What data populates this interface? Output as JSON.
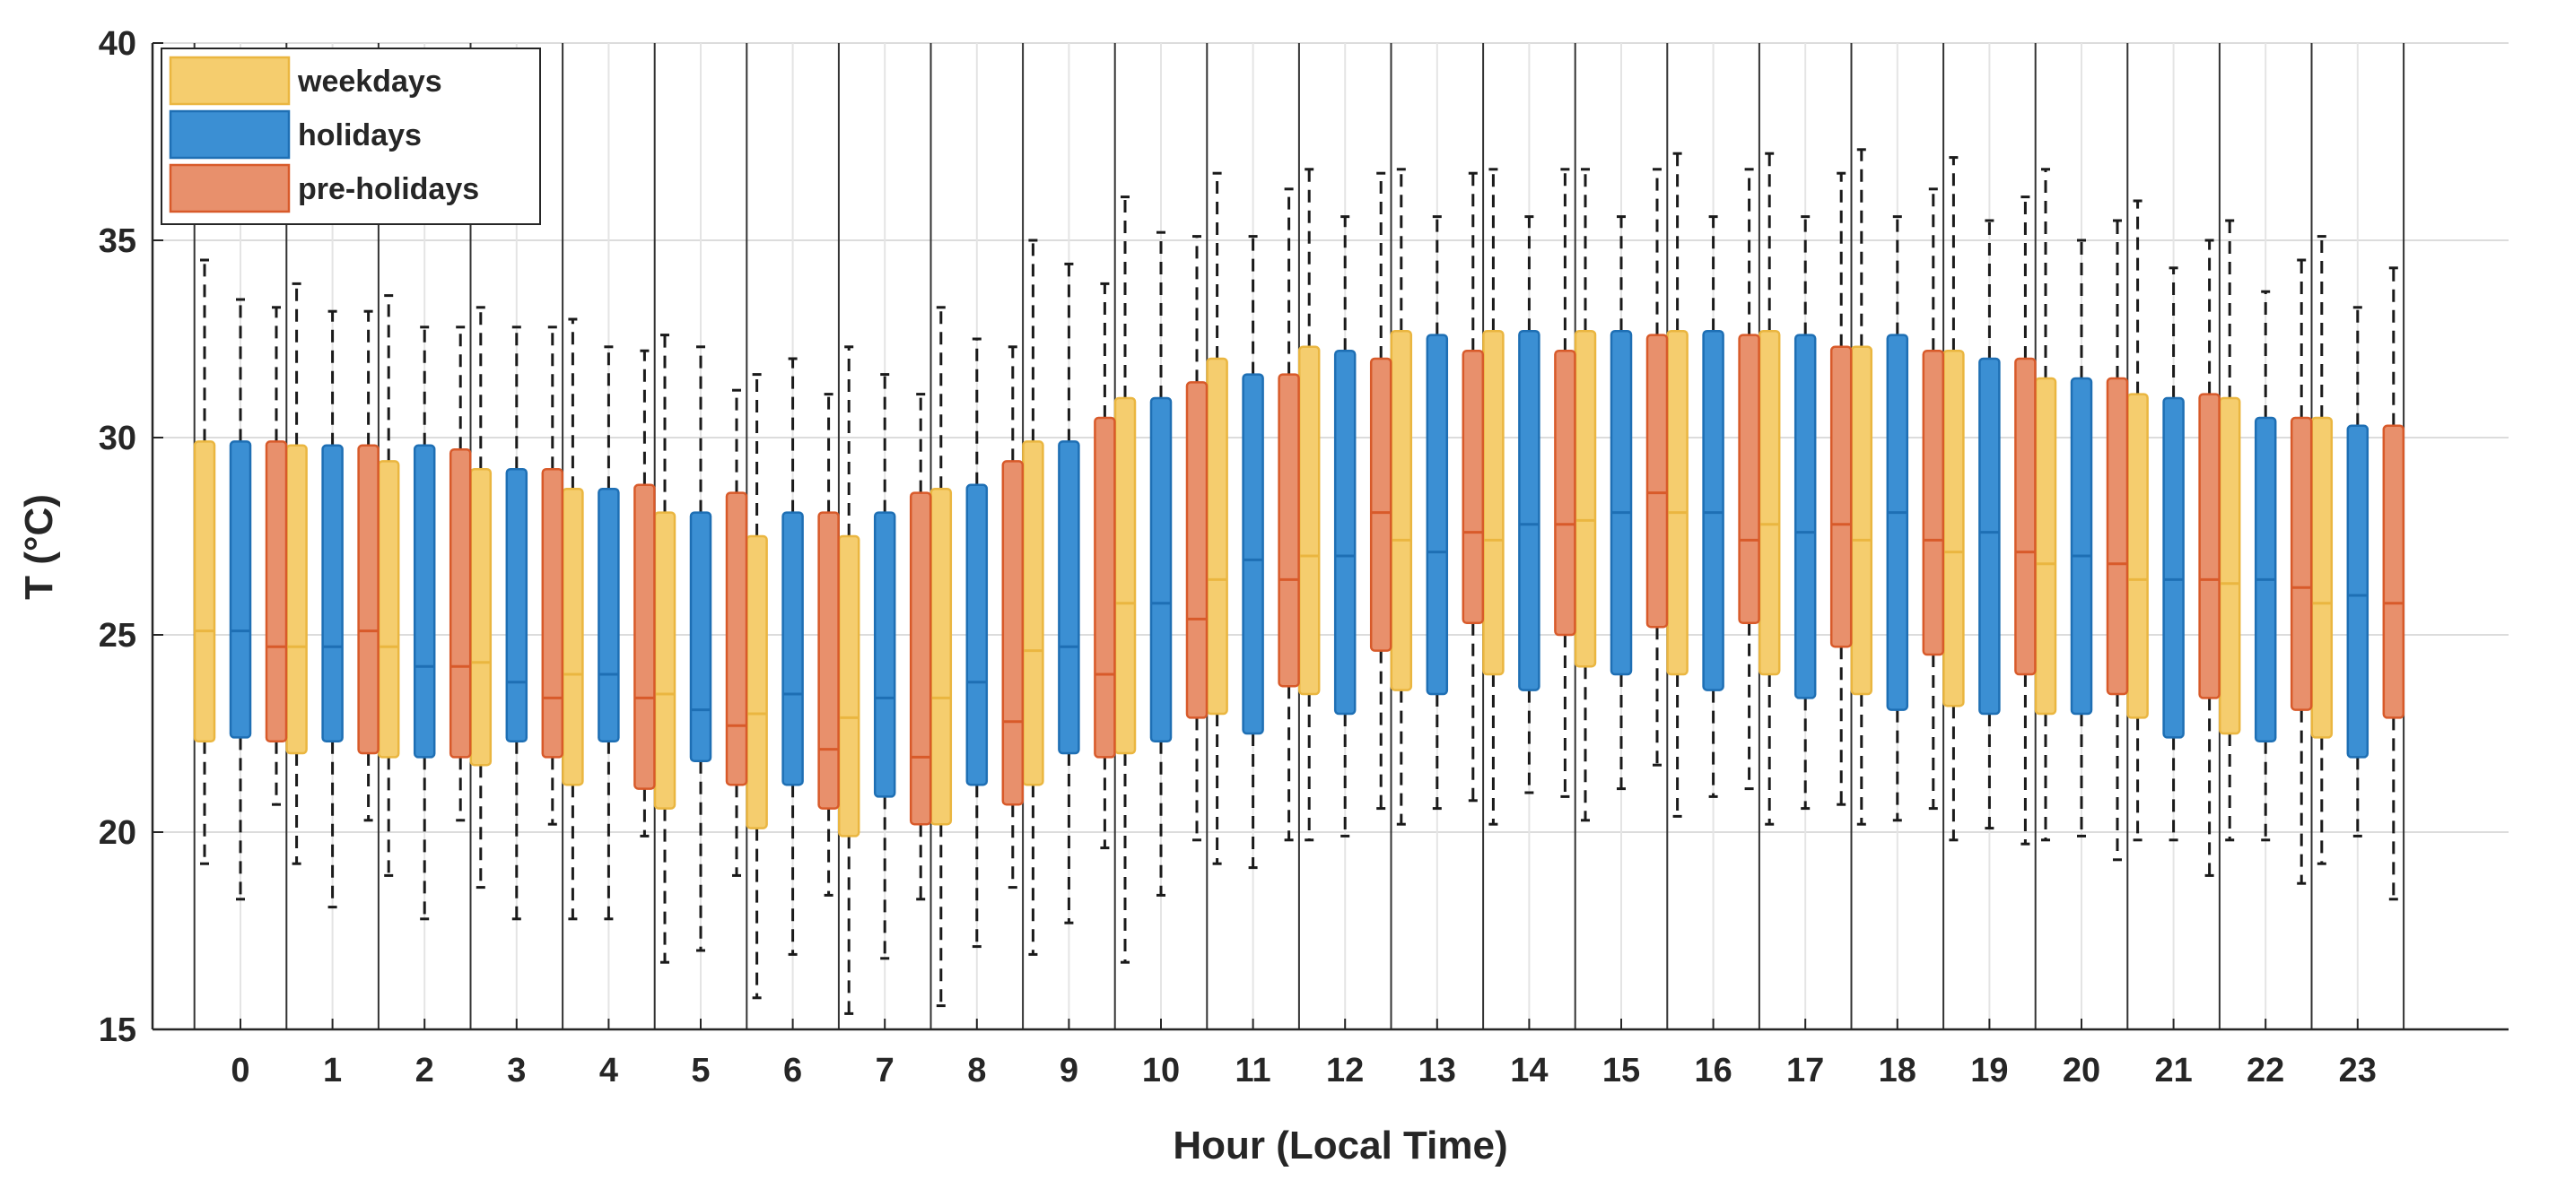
{
  "chart_data": {
    "type": "box",
    "title": "",
    "xlabel": "Hour (Local Time)",
    "ylabel": "T (°C)",
    "ylim": [
      15,
      40
    ],
    "yticks": [
      "15",
      "20",
      "25",
      "30",
      "35",
      "40"
    ],
    "categories": [
      "0",
      "1",
      "2",
      "3",
      "4",
      "5",
      "6",
      "7",
      "8",
      "9",
      "10",
      "11",
      "12",
      "13",
      "14",
      "15",
      "16",
      "17",
      "18",
      "19",
      "20",
      "21",
      "22",
      "23"
    ],
    "grid": true,
    "legend_position": "top-left",
    "series": [
      {
        "name": "weekdays",
        "color": "#f5cd6e",
        "edge": "#eab640",
        "lower_whisker": [
          19.2,
          19.2,
          18.9,
          18.6,
          17.8,
          16.7,
          15.8,
          15.4,
          15.6,
          16.9,
          16.7,
          19.2,
          19.8,
          20.2,
          20.2,
          20.3,
          20.4,
          20.2,
          20.2,
          19.8,
          19.8,
          19.8,
          19.8,
          19.2
        ],
        "q1": [
          22.3,
          22.0,
          21.9,
          21.7,
          21.2,
          20.6,
          20.1,
          19.9,
          20.2,
          21.2,
          22.0,
          23.0,
          23.5,
          23.6,
          24.0,
          24.2,
          24.0,
          24.0,
          23.5,
          23.2,
          23.0,
          22.9,
          22.5,
          22.4
        ],
        "median": [
          25.1,
          24.7,
          24.7,
          24.3,
          24.0,
          23.5,
          23.0,
          22.9,
          23.4,
          24.6,
          25.8,
          26.4,
          27.0,
          27.4,
          27.4,
          27.9,
          28.1,
          27.8,
          27.4,
          27.1,
          26.8,
          26.4,
          26.3,
          25.8
        ],
        "q3": [
          29.9,
          29.8,
          29.4,
          29.2,
          28.7,
          28.1,
          27.5,
          27.5,
          28.7,
          29.9,
          31.0,
          32.0,
          32.3,
          32.7,
          32.7,
          32.7,
          32.7,
          32.7,
          32.3,
          32.2,
          31.5,
          31.1,
          31.0,
          30.5
        ],
        "upper_whisker": [
          34.5,
          33.9,
          33.6,
          33.3,
          33.0,
          32.6,
          31.6,
          32.3,
          33.3,
          35.0,
          36.1,
          36.7,
          36.8,
          36.8,
          36.8,
          36.8,
          37.2,
          37.2,
          37.3,
          37.1,
          36.8,
          36.0,
          35.5,
          35.1
        ]
      },
      {
        "name": "holidays",
        "color": "#3b8fd3",
        "edge": "#1e6fb4",
        "lower_whisker": [
          18.3,
          18.1,
          17.8,
          17.8,
          17.8,
          17.0,
          16.9,
          16.8,
          17.1,
          17.7,
          18.4,
          19.1,
          19.9,
          20.6,
          21.0,
          21.1,
          20.9,
          20.6,
          20.3,
          20.1,
          19.9,
          19.8,
          19.8,
          19.9
        ],
        "q1": [
          22.4,
          22.3,
          21.9,
          22.3,
          22.3,
          21.8,
          21.2,
          20.9,
          21.2,
          22.0,
          22.3,
          22.5,
          23.0,
          23.5,
          23.6,
          24.0,
          23.6,
          23.4,
          23.1,
          23.0,
          23.0,
          22.4,
          22.3,
          21.9
        ],
        "median": [
          25.1,
          24.7,
          24.2,
          23.8,
          24.0,
          23.1,
          23.5,
          23.4,
          23.8,
          24.7,
          25.8,
          26.9,
          27.0,
          27.1,
          27.8,
          28.1,
          28.1,
          27.6,
          28.1,
          27.6,
          27.0,
          26.4,
          26.4,
          26.0
        ],
        "q3": [
          29.9,
          29.8,
          29.8,
          29.2,
          28.7,
          28.1,
          28.1,
          28.1,
          28.8,
          29.9,
          31.0,
          31.6,
          32.2,
          32.6,
          32.7,
          32.7,
          32.7,
          32.6,
          32.6,
          32.0,
          31.5,
          31.0,
          30.5,
          30.3
        ],
        "upper_whisker": [
          33.5,
          33.2,
          32.8,
          32.8,
          32.3,
          32.3,
          32.0,
          31.6,
          32.5,
          34.4,
          35.2,
          35.1,
          35.6,
          35.6,
          35.6,
          35.6,
          35.6,
          35.6,
          35.6,
          35.5,
          35.0,
          34.3,
          33.7,
          33.3
        ]
      },
      {
        "name": "pre-holidays",
        "color": "#e8906c",
        "edge": "#d85a2a",
        "lower_whisker": [
          20.7,
          20.3,
          20.3,
          20.2,
          19.9,
          18.9,
          18.4,
          18.3,
          18.6,
          19.6,
          19.8,
          19.8,
          20.6,
          20.8,
          20.9,
          21.7,
          21.1,
          20.7,
          20.6,
          19.7,
          19.3,
          18.9,
          18.7,
          18.3
        ],
        "q1": [
          22.3,
          22.0,
          21.9,
          21.9,
          21.1,
          21.2,
          20.6,
          20.2,
          20.7,
          21.9,
          22.9,
          23.7,
          24.6,
          25.3,
          25.0,
          25.2,
          25.3,
          24.7,
          24.5,
          24.0,
          23.5,
          23.4,
          23.1,
          22.9
        ],
        "median": [
          24.7,
          25.1,
          24.2,
          23.4,
          23.4,
          22.7,
          22.1,
          21.9,
          22.8,
          24.0,
          25.4,
          26.4,
          28.1,
          27.6,
          27.8,
          28.6,
          27.4,
          27.8,
          27.4,
          27.1,
          26.8,
          26.4,
          26.2,
          25.8
        ],
        "q3": [
          29.9,
          29.8,
          29.7,
          29.2,
          28.8,
          28.6,
          28.1,
          28.6,
          29.4,
          30.5,
          31.4,
          31.6,
          32.0,
          32.2,
          32.2,
          32.6,
          32.6,
          32.3,
          32.2,
          32.0,
          31.5,
          31.1,
          30.5,
          30.3
        ],
        "upper_whisker": [
          33.3,
          33.2,
          32.8,
          32.8,
          32.2,
          31.2,
          31.1,
          31.1,
          32.3,
          33.9,
          35.1,
          36.3,
          36.7,
          36.7,
          36.8,
          36.8,
          36.8,
          36.7,
          36.3,
          36.1,
          35.5,
          35.0,
          34.5,
          34.3
        ]
      }
    ]
  }
}
